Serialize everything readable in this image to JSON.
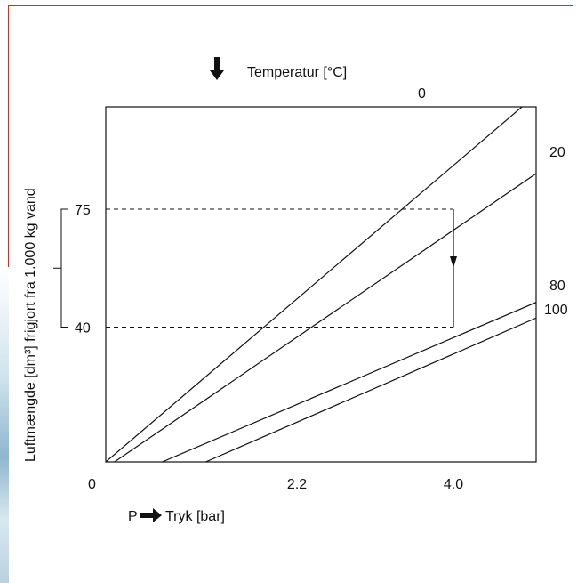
{
  "chart_data": {
    "type": "line",
    "title": "Temperatur [°C]",
    "xlabel_prefix": "P",
    "xlabel": "Tryk [bar]",
    "ylabel": "Luftmængde [dm³] frigjort fra 1.000 kg vand",
    "origin_label": "0",
    "x_ticks": [
      "2.2",
      "4.0"
    ],
    "y_ticks": [
      "75",
      "40"
    ],
    "series": [
      {
        "name": "0",
        "x": [
          0,
          5.0
        ],
        "y": [
          0,
          110
        ]
      },
      {
        "name": "20",
        "x": [
          0.1,
          5.6
        ],
        "y": [
          0,
          97
        ]
      },
      {
        "name": "80",
        "x": [
          0.65,
          5.6
        ],
        "y": [
          0,
          54.5
        ]
      },
      {
        "name": "100",
        "x": [
          1.15,
          5.6
        ],
        "y": [
          0,
          50
        ]
      }
    ],
    "reference": {
      "x": 4.0,
      "y_from": 75,
      "y_to": 40,
      "dashed_levels": [
        75,
        40
      ]
    }
  }
}
